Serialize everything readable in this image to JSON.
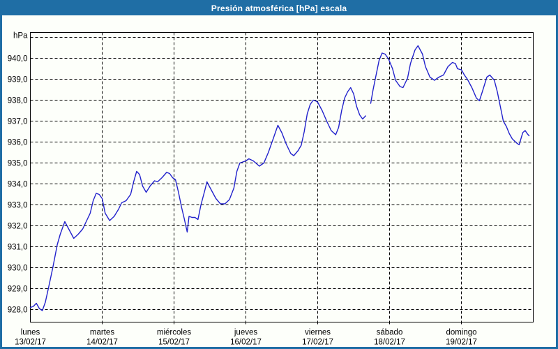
{
  "window": {
    "title": "Presión atmosférica [hPa] escala"
  },
  "colors": {
    "titlebar_bg": "#1f6ea5",
    "frame_border": "#1f6ea5",
    "background": "#fdfffa",
    "line": "#2222cc",
    "grid": "#000000",
    "text": "#000000",
    "title_text": "#ffffff"
  },
  "chart_data": {
    "type": "line",
    "title": "Presión atmosférica [hPa] escala",
    "ylabel": "hPa",
    "unit_label": "hPa",
    "grid": "dashed",
    "legend_position": "none",
    "ylim": [
      927.4,
      941.3
    ],
    "xlim_hours": [
      0,
      168
    ],
    "y_gridline_values": [
      941,
      940,
      939,
      938,
      937,
      936,
      935,
      934,
      933,
      932,
      931,
      930,
      929,
      928
    ],
    "y_ticks": [
      {
        "v": 940,
        "label": "940,0"
      },
      {
        "v": 939,
        "label": "939,0"
      },
      {
        "v": 938,
        "label": "938,0"
      },
      {
        "v": 937,
        "label": "937,0"
      },
      {
        "v": 936,
        "label": "936,0"
      },
      {
        "v": 935,
        "label": "935,0"
      },
      {
        "v": 934,
        "label": "934,0"
      },
      {
        "v": 933,
        "label": "933,0"
      },
      {
        "v": 932,
        "label": "932,0"
      },
      {
        "v": 931,
        "label": "931,0"
      },
      {
        "v": 930,
        "label": "930,0"
      },
      {
        "v": 929,
        "label": "929,0"
      },
      {
        "v": 928,
        "label": "928,0"
      }
    ],
    "x_days": [
      {
        "name": "lunes",
        "date": "13/02/17"
      },
      {
        "name": "martes",
        "date": "14/02/17"
      },
      {
        "name": "miércoles",
        "date": "15/02/17"
      },
      {
        "name": "jueves",
        "date": "16/02/17"
      },
      {
        "name": "viernes",
        "date": "17/02/17"
      },
      {
        "name": "sábado",
        "date": "18/02/17"
      },
      {
        "name": "domingo",
        "date": "19/02/17"
      }
    ],
    "series": [
      {
        "name": "Presión atmosférica",
        "color": "#2222cc",
        "points": [
          [
            0,
            928.1
          ],
          [
            1,
            928.15
          ],
          [
            2,
            928.3
          ],
          [
            3,
            928.05
          ],
          [
            4,
            927.95
          ],
          [
            5,
            928.35
          ],
          [
            6,
            929.0
          ],
          [
            7.5,
            930.0
          ],
          [
            9,
            931.1
          ],
          [
            10,
            931.6
          ],
          [
            11.5,
            932.2
          ],
          [
            13,
            931.8
          ],
          [
            14.5,
            931.4
          ],
          [
            16,
            931.6
          ],
          [
            17.5,
            931.85
          ],
          [
            19,
            932.3
          ],
          [
            20,
            932.6
          ],
          [
            21,
            933.2
          ],
          [
            22,
            933.55
          ],
          [
            23,
            933.5
          ],
          [
            24,
            933.3
          ],
          [
            25,
            932.6
          ],
          [
            26.5,
            932.25
          ],
          [
            28,
            932.45
          ],
          [
            29.5,
            932.8
          ],
          [
            30.5,
            933.1
          ],
          [
            32,
            933.2
          ],
          [
            33.5,
            933.5
          ],
          [
            34.5,
            934.1
          ],
          [
            35.5,
            934.6
          ],
          [
            36.5,
            934.45
          ],
          [
            37.5,
            933.9
          ],
          [
            38.7,
            933.6
          ],
          [
            40,
            933.9
          ],
          [
            41.5,
            934.15
          ],
          [
            42.5,
            934.1
          ],
          [
            44,
            934.3
          ],
          [
            45.5,
            934.55
          ],
          [
            46.5,
            934.5
          ],
          [
            47.5,
            934.3
          ],
          [
            48.5,
            934.2
          ],
          [
            49.5,
            933.6
          ],
          [
            50.5,
            932.9
          ],
          [
            51.4,
            932.35
          ],
          [
            52.4,
            931.7
          ],
          [
            53,
            932.45
          ],
          [
            54,
            932.4
          ],
          [
            55,
            932.4
          ],
          [
            56,
            932.3
          ],
          [
            57,
            933.0
          ],
          [
            58.3,
            933.7
          ],
          [
            59,
            934.1
          ],
          [
            60.5,
            933.7
          ],
          [
            62,
            933.3
          ],
          [
            63.5,
            933.05
          ],
          [
            65,
            933.05
          ],
          [
            66.5,
            933.25
          ],
          [
            68,
            933.8
          ],
          [
            69,
            934.6
          ],
          [
            70,
            935.0
          ],
          [
            71,
            935.05
          ],
          [
            72,
            935.1
          ],
          [
            73,
            935.2
          ],
          [
            74.5,
            935.1
          ],
          [
            76.5,
            934.85
          ],
          [
            78,
            935.0
          ],
          [
            79.5,
            935.5
          ],
          [
            81,
            936.1
          ],
          [
            82.7,
            936.8
          ],
          [
            84,
            936.45
          ],
          [
            85.5,
            935.9
          ],
          [
            87,
            935.45
          ],
          [
            88,
            935.35
          ],
          [
            89.5,
            935.6
          ],
          [
            90.5,
            935.85
          ],
          [
            91.5,
            936.5
          ],
          [
            92.5,
            937.35
          ],
          [
            93.5,
            937.8
          ],
          [
            94.5,
            938.0
          ],
          [
            95.5,
            937.95
          ],
          [
            96,
            937.9
          ],
          [
            97.5,
            937.5
          ],
          [
            99,
            937.0
          ],
          [
            100.5,
            936.55
          ],
          [
            102,
            936.35
          ],
          [
            103,
            936.7
          ],
          [
            104,
            937.5
          ],
          [
            105,
            938.1
          ],
          [
            106,
            938.4
          ],
          [
            107,
            938.6
          ],
          [
            108,
            938.3
          ],
          [
            109,
            937.7
          ],
          [
            110,
            937.3
          ],
          [
            111,
            937.1
          ],
          [
            112,
            937.25
          ],
          [
            112.8,
            null
          ],
          [
            113.7,
            937.85
          ],
          [
            114.5,
            938.5
          ],
          [
            115.5,
            939.2
          ],
          [
            116.5,
            939.9
          ],
          [
            117.5,
            940.25
          ],
          [
            118.5,
            940.2
          ],
          [
            119.5,
            940.0
          ],
          [
            120,
            939.85
          ],
          [
            121,
            939.5
          ],
          [
            122,
            938.95
          ],
          [
            123.5,
            938.65
          ],
          [
            124.5,
            938.6
          ],
          [
            126,
            939.05
          ],
          [
            127,
            939.75
          ],
          [
            128.5,
            940.4
          ],
          [
            129.5,
            940.6
          ],
          [
            131,
            940.2
          ],
          [
            132,
            939.6
          ],
          [
            133.5,
            939.1
          ],
          [
            135,
            938.95
          ],
          [
            136.5,
            939.1
          ],
          [
            138,
            939.2
          ],
          [
            139.5,
            939.6
          ],
          [
            141,
            939.8
          ],
          [
            142,
            939.75
          ],
          [
            142.7,
            939.5
          ],
          [
            144,
            939.45
          ],
          [
            145,
            939.2
          ],
          [
            146,
            939.0
          ],
          [
            147.5,
            938.6
          ],
          [
            149,
            938.1
          ],
          [
            150,
            937.97
          ],
          [
            151,
            938.4
          ],
          [
            152.5,
            939.1
          ],
          [
            153.5,
            939.2
          ],
          [
            155,
            938.95
          ],
          [
            156,
            938.4
          ],
          [
            157,
            937.7
          ],
          [
            158,
            937.0
          ],
          [
            159,
            936.75
          ],
          [
            160,
            936.4
          ],
          [
            161,
            936.15
          ],
          [
            162.5,
            935.95
          ],
          [
            163.3,
            935.87
          ],
          [
            164.5,
            936.45
          ],
          [
            165.3,
            936.55
          ],
          [
            166,
            936.4
          ],
          [
            166.6,
            936.3
          ]
        ]
      }
    ]
  }
}
